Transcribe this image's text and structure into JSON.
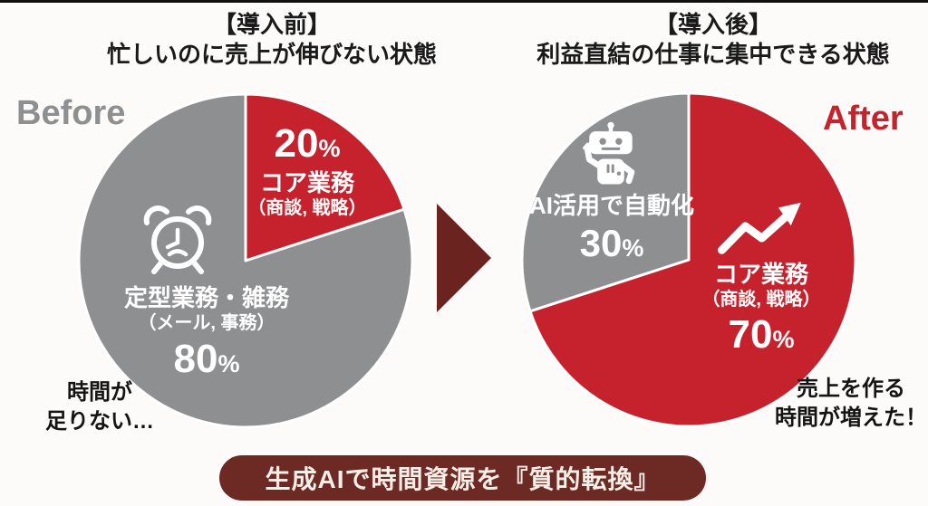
{
  "colors": {
    "accent_red": "#c6222e",
    "accent_gray": "#8d8f91",
    "maroon": "#6b2320",
    "banner_bg": "#6d2a25",
    "banner_fg": "#f6efe8",
    "background": "#fcfbf9"
  },
  "before": {
    "title_line1": "【導入前】",
    "title_line2": "忙しいのに売上が伸びない状態",
    "tag": "Before",
    "red_slice": {
      "pct": "20",
      "pct_sign": "%",
      "label": "コア業務",
      "sub": "（商談, 戦略）"
    },
    "gray_slice": {
      "label": "定型業務・雑務",
      "sub": "（メール, 事務）",
      "pct": "80",
      "pct_sign": "%"
    },
    "note_line1": "時間が",
    "note_line2": "足りない…"
  },
  "after": {
    "title_line1": "【導入後】",
    "title_line2": "利益直結の仕事に集中できる状態",
    "tag": "After",
    "gray_slice": {
      "label": "AI活用で自動化",
      "pct": "30",
      "pct_sign": "%"
    },
    "red_slice": {
      "label": "コア業務",
      "sub": "（商談, 戦略）",
      "pct": "70",
      "pct_sign": "%"
    },
    "note_line1": "売上を作る",
    "note_line2": "時間が増えた！"
  },
  "banner": {
    "text": "生成AIで時間資源を『質的転換』"
  },
  "icons": {
    "before_gray": "alarm-clock-icon",
    "after_gray": "robot-icon",
    "after_red": "trend-up-arrow-icon",
    "between": "transition-arrow"
  },
  "chart_data": [
    {
      "type": "pie",
      "title": "【導入前】忙しいのに売上が伸びない状態",
      "labels": [
        "コア業務（商談, 戦略）",
        "定型業務・雑務（メール, 事務）"
      ],
      "values": [
        20,
        80
      ],
      "colors": [
        "#c6222e",
        "#8d8f91"
      ],
      "start_angle_deg": 0,
      "direction": "clockwise",
      "annotations": [
        "Before",
        "時間が足りない…"
      ]
    },
    {
      "type": "pie",
      "title": "【導入後】利益直結の仕事に集中できる状態",
      "labels": [
        "コア業務（商談, 戦略）",
        "AI活用で自動化"
      ],
      "values": [
        70,
        30
      ],
      "colors": [
        "#c6222e",
        "#8d8f91"
      ],
      "start_angle_deg": 0,
      "direction": "clockwise",
      "annotations": [
        "After",
        "売上を作る時間が増えた！"
      ]
    }
  ]
}
